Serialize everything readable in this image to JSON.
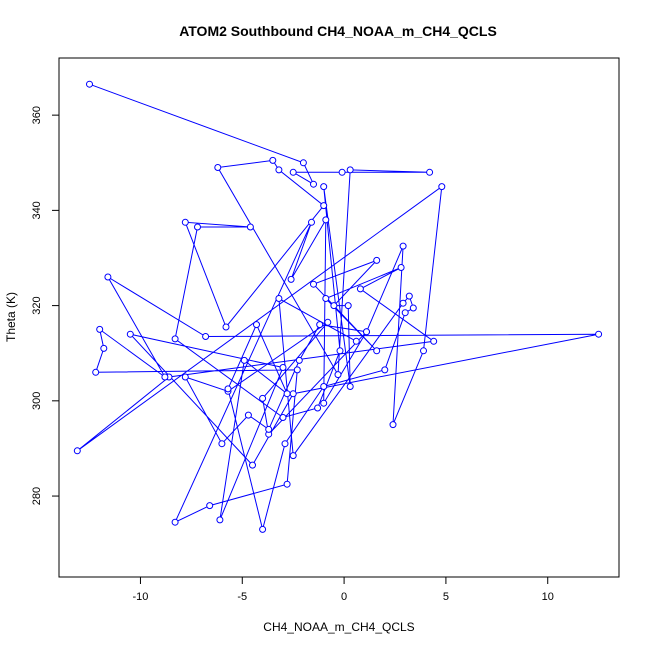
{
  "chart_data": {
    "type": "line",
    "title": "ATOM2 Southbound CH4_NOAA_m_CH4_QCLS",
    "xlabel": "CH4_NOAA_m_CH4_QCLS",
    "ylabel": "Theta (K)",
    "xlim": [
      -14,
      13.5
    ],
    "ylim": [
      263,
      372
    ],
    "xticks": [
      -10,
      -5,
      0,
      5,
      10
    ],
    "yticks": [
      280,
      300,
      320,
      340,
      360
    ],
    "grid": false,
    "marker": "open-circle",
    "color": "#0000ff",
    "series": [
      {
        "x": [
          -12.5,
          -2.0,
          -1.5,
          -2.5,
          -0.1,
          4.2,
          0.3,
          -0.3,
          -6.2,
          -3.5,
          -3.2,
          -1.0,
          -5.8,
          -7.8,
          -4.6,
          -7.2,
          -8.3,
          -3.0,
          -1.3,
          -0.2,
          -1.0,
          0.3,
          0.2,
          -0.5,
          1.6,
          -1.5,
          1.6,
          -0.9,
          2.8,
          0.8,
          4.4,
          -8.6,
          -13.1,
          4.8,
          3.9,
          2.4,
          2.9,
          1.1,
          -3.7,
          -4.0,
          -0.8,
          -5.7,
          -7.8,
          -6.0,
          -4.7,
          -3.7,
          -2.2,
          -1.2,
          1.1,
          -1.0,
          -0.9,
          -2.6,
          -1.6,
          -8.3,
          -6.6,
          -2.8,
          -2.3,
          -12.2,
          -11.8,
          -12.0,
          -8.8,
          -11.6,
          -6.8,
          12.5,
          -2.5,
          -4.5,
          -10.5,
          -3.0,
          -6.1,
          -4.9,
          -2.8,
          -4.3,
          -5.7,
          -4.0,
          -2.9,
          -1.0,
          2.0,
          3.0,
          3.4,
          3.2,
          2.9,
          -2.5,
          -3.2,
          0.6
        ],
        "y": [
          366.5,
          350.0,
          345.5,
          348.0,
          348.0,
          348.0,
          348.5,
          305.5,
          349.0,
          350.5,
          348.5,
          341.0,
          315.5,
          337.5,
          336.5,
          336.5,
          313.0,
          296.5,
          298.5,
          310.5,
          345.0,
          303.0,
          320.0,
          320.0,
          329.5,
          324.5,
          310.5,
          321.5,
          328.0,
          323.5,
          312.5,
          305.0,
          289.5,
          345.0,
          310.5,
          295.0,
          332.5,
          314.5,
          293.0,
          300.5,
          316.5,
          302.0,
          305.0,
          291.0,
          297.0,
          294.0,
          308.5,
          316.0,
          314.5,
          299.5,
          338.0,
          325.5,
          337.5,
          274.5,
          278.0,
          282.5,
          306.5,
          306.0,
          311.0,
          315.0,
          305.0,
          326.0,
          313.5,
          314.0,
          301.5,
          286.5,
          314.0,
          307.0,
          275.0,
          308.5,
          301.5,
          316.0,
          302.5,
          273.0,
          291.0,
          303.0,
          306.5,
          318.5,
          319.5,
          322.0,
          320.5,
          288.5,
          321.5,
          312.5
        ]
      }
    ]
  }
}
